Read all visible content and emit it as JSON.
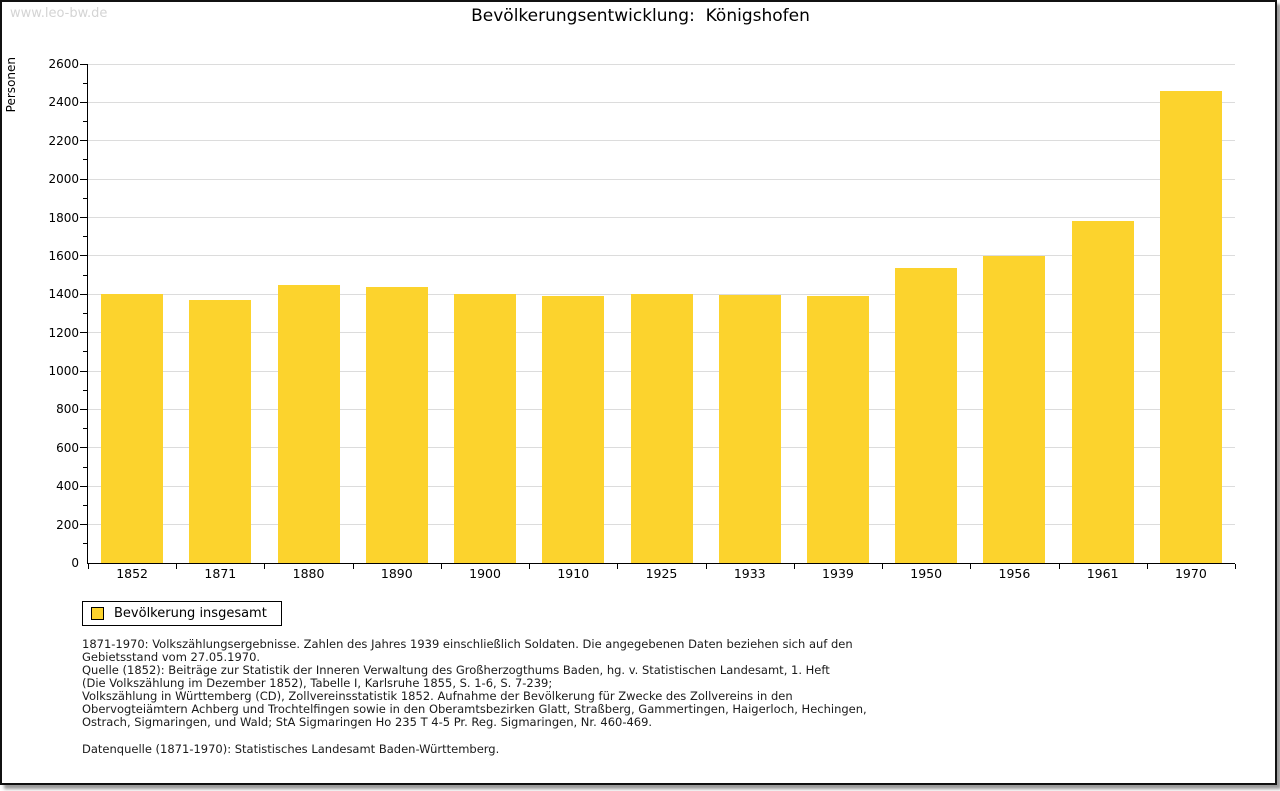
{
  "watermark": "www.leo-bw.de",
  "header": {
    "title": "Bevölkerungsentwicklung:  Königshofen"
  },
  "colors": {
    "bar": "#FCD32D",
    "grid": "#DCDCDC",
    "axis": "#000000",
    "watermark": "#D4D4D4"
  },
  "legend": {
    "label": "Bevölkerung insgesamt"
  },
  "chart_data": {
    "type": "bar",
    "title": "Bevölkerungsentwicklung: Königshofen",
    "categories": [
      "1852",
      "1871",
      "1880",
      "1890",
      "1900",
      "1910",
      "1925",
      "1933",
      "1939",
      "1950",
      "1956",
      "1961",
      "1970"
    ],
    "values": [
      1400,
      1373,
      1447,
      1437,
      1401,
      1390,
      1403,
      1399,
      1390,
      1537,
      1600,
      1782,
      2462
    ],
    "series_name": "Bevölkerung insgesamt",
    "xlabel": "",
    "ylabel": "Personen",
    "ylim": [
      0,
      2600
    ],
    "ytick_step": 200,
    "ytick_minor_step": 100,
    "grid": true,
    "legend_position": "bottom-left"
  },
  "footnotes": [
    "1871-1970: Volkszählungsergebnisse. Zahlen des Jahres 1939 einschließlich Soldaten. Die angegebenen Daten beziehen sich auf den",
    "Gebietsstand vom 27.05.1970.",
    "Quelle (1852): Beiträge zur Statistik der Inneren Verwaltung des Großherzogthums Baden, hg. v. Statistischen Landesamt, 1. Heft",
    "(Die Volkszählung im Dezember 1852), Tabelle I, Karlsruhe 1855, S. 1-6, S. 7-239;",
    "Volkszählung in Württemberg (CD), Zollvereinsstatistik 1852. Aufnahme der Bevölkerung für Zwecke des Zollvereins in den",
    "Obervogteiämtern Achberg und Trochtelfingen sowie in den Oberamtsbezirken Glatt, Straßberg, Gammertingen, Haigerloch, Hechingen,",
    "Ostrach, Sigmaringen, und Wald; StA Sigmaringen Ho 235 T 4-5 Pr. Reg. Sigmaringen, Nr. 460-469."
  ],
  "datasource": "Datenquelle (1871-1970): Statistisches Landesamt Baden-Württemberg."
}
